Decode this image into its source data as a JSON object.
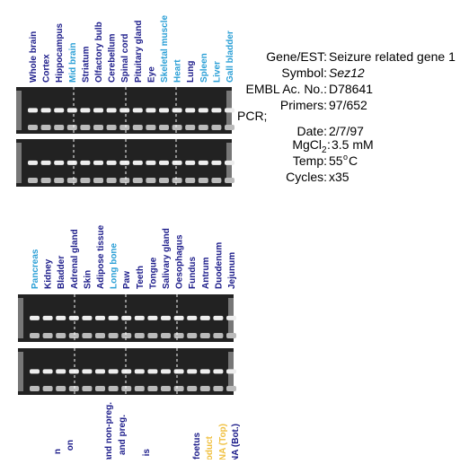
{
  "panels": [
    {
      "lanes": [
        {
          "label": "Whole brain",
          "color": "#1c1c8a"
        },
        {
          "label": "Cortex",
          "color": "#1c1c8a"
        },
        {
          "label": "Hippocampus",
          "color": "#1c1c8a"
        },
        {
          "label": "Mid brain",
          "color": "#2a9fd6"
        },
        {
          "label": "Striatum",
          "color": "#1c1c8a"
        },
        {
          "label": "Olfactory bulb",
          "color": "#1c1c8a"
        },
        {
          "label": "Cerebellum",
          "color": "#1c1c8a"
        },
        {
          "label": "Spinal cord",
          "color": "#1c1c8a"
        },
        {
          "label": "Pituitary gland",
          "color": "#1c1c8a"
        },
        {
          "label": "Eye",
          "color": "#1c1c8a"
        },
        {
          "label": "Skeletal muscle",
          "color": "#2a9fd6"
        },
        {
          "label": "Heart",
          "color": "#2a9fd6"
        },
        {
          "label": "Lung",
          "color": "#1c1c8a"
        },
        {
          "label": "Spleen",
          "color": "#2a9fd6"
        },
        {
          "label": "Liver",
          "color": "#2a9fd6"
        },
        {
          "label": "Gall bladder",
          "color": "#2a9fd6"
        }
      ]
    },
    {
      "lanes": [
        {
          "label": "Pancreas",
          "color": "#2a9fd6"
        },
        {
          "label": "Kidney",
          "color": "#1c1c8a"
        },
        {
          "label": "Bladder",
          "color": "#1c1c8a"
        },
        {
          "label": "Adrenal gland",
          "color": "#1c1c8a"
        },
        {
          "label": "Skin",
          "color": "#1c1c8a"
        },
        {
          "label": "Adipose tissue",
          "color": "#1c1c8a"
        },
        {
          "label": "Long bone",
          "color": "#2a9fd6"
        },
        {
          "label": "Paw",
          "color": "#1c1c8a"
        },
        {
          "label": "Teeth",
          "color": "#1c1c8a"
        },
        {
          "label": "Tongue",
          "color": "#1c1c8a"
        },
        {
          "label": "Salivary gland",
          "color": "#1c1c8a"
        },
        {
          "label": "Oesophagus",
          "color": "#1c1c8a"
        },
        {
          "label": "Fundus",
          "color": "#1c1c8a"
        },
        {
          "label": "Antrum",
          "color": "#1c1c8a"
        },
        {
          "label": "Duodenum",
          "color": "#1c1c8a"
        },
        {
          "label": "Jejunum",
          "color": "#1c1c8a"
        }
      ]
    }
  ],
  "cut_labels": [
    {
      "label": "n",
      "color": "#1c1c8a"
    },
    {
      "label": "on",
      "color": "#1c1c8a"
    },
    {
      "label": "and non-preg.",
      "color": "#1c1c8a"
    },
    {
      "label": "and preg.",
      "color": "#1c1c8a"
    },
    {
      "label": "is",
      "color": "#1c1c8a"
    },
    {
      "label": "foetus",
      "color": "#1c1c8a"
    },
    {
      "label": "oduct",
      "color": "#f0c040"
    },
    {
      "label": "NA (Top)",
      "color": "#f0c040"
    },
    {
      "label": "NA (Bot.)",
      "color": "#1c1c8a"
    }
  ],
  "info": {
    "gene_key": "Gene/EST:",
    "gene": "Seizure related gene 1",
    "symbol_key": "Symbol:",
    "symbol": "Sez12",
    "embl_key": "EMBL Ac. No.:",
    "embl": "D78641",
    "primers_key": "Primers:",
    "primers": "97/652",
    "pcr": "PCR;",
    "date_key": "Date:",
    "date": "2/7/97",
    "mg_key": "MgCl",
    "mg_sub": "2",
    "mg_colon": ":",
    "mg": "3.5 mM",
    "temp_key": "Temp:",
    "temp": "55",
    "temp_sup": "o",
    "temp_unit": "C",
    "cycles_key": "Cycles:",
    "cycles": "x35"
  }
}
